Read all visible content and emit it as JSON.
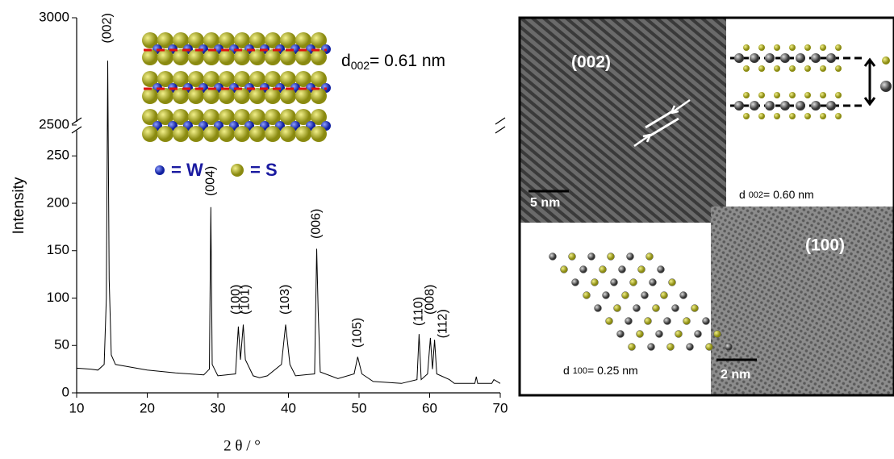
{
  "chart_data": {
    "type": "line",
    "x_label": "2 θ / °",
    "y_label": "Intensity",
    "x": [
      10,
      12,
      13,
      13.9,
      14.2,
      14.4,
      14.6,
      14.9,
      15.5,
      17,
      20,
      24,
      28,
      28.8,
      29.0,
      29.2,
      30,
      32.5,
      32.9,
      33.2,
      33.6,
      33.9,
      35,
      35.9,
      37,
      39,
      39.6,
      40.2,
      41,
      43.7,
      44.0,
      44.2,
      44.5,
      47,
      49.3,
      49.8,
      50.4,
      52,
      56,
      58.2,
      58.5,
      58.8,
      59.7,
      60.1,
      60.4,
      60.7,
      61.0,
      62.8,
      63.5,
      66.4,
      66.6,
      66.8,
      68.8,
      69.1,
      70
    ],
    "series": [
      {
        "color": "#000000",
        "values": [
          26,
          25,
          24,
          30,
          100,
          2800,
          120,
          40,
          30,
          28,
          24,
          21,
          19,
          25,
          196,
          30,
          18,
          20,
          70,
          35,
          72,
          35,
          18,
          16,
          18,
          30,
          72,
          30,
          18,
          20,
          152,
          88,
          22,
          15,
          20,
          38,
          20,
          12,
          10,
          14,
          62,
          14,
          20,
          58,
          25,
          56,
          20,
          14,
          10,
          10,
          17,
          10,
          10,
          14,
          10
        ]
      }
    ],
    "xlim": [
      10,
      70
    ],
    "xticks": [
      10,
      20,
      30,
      40,
      50,
      60,
      70
    ],
    "ylim": [
      0,
      3000
    ],
    "ybreak": [
      280,
      2500
    ],
    "yticks": [
      0,
      50,
      100,
      150,
      200,
      250,
      2500,
      3000
    ],
    "annotations": [
      {
        "text": "(002)",
        "x": 14.4,
        "y": 2870
      },
      {
        "text": "(004)",
        "x": 29.0,
        "y": 205
      },
      {
        "text": "(100)",
        "x": 32.6,
        "y": 80
      },
      {
        "text": "(101)",
        "x": 33.9,
        "y": 80
      },
      {
        "text": "(103)",
        "x": 39.6,
        "y": 80
      },
      {
        "text": "(006)",
        "x": 44.0,
        "y": 160
      },
      {
        "text": "(105)",
        "x": 49.8,
        "y": 45
      },
      {
        "text": "(110)",
        "x": 58.5,
        "y": 68
      },
      {
        "text": "(008)",
        "x": 60.1,
        "y": 80
      },
      {
        "text": "(112)",
        "x": 61.9,
        "y": 55
      }
    ],
    "inset": {
      "d_symbol": "d",
      "d_index": "002",
      "d_value": "= 0.61 nm",
      "legend_w": "= W",
      "legend_s": "= S"
    }
  },
  "micrographs": {
    "top_left_label": "(002)",
    "top_left_scale": "5 nm",
    "top_right_d": "d",
    "top_right_index": "002",
    "top_right_value": "= 0.60 nm",
    "bottom_left_d": "d",
    "bottom_left_index": "100",
    "bottom_left_value": "= 0.25 nm",
    "bottom_right_label": "(100)",
    "bottom_right_scale": "2 nm"
  }
}
